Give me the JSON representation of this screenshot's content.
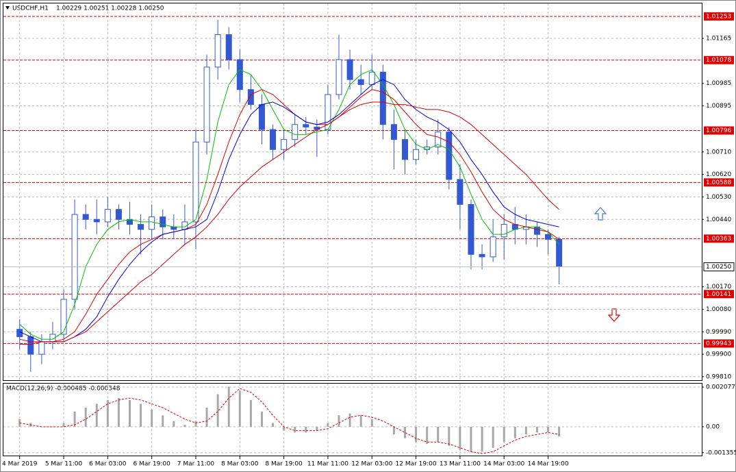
{
  "chart_data": [
    {
      "type": "candlestick",
      "title": "USDCHF,H1",
      "subtitle": "1.00229 1.00251 1.00228 1.00250",
      "categories": [
        "4 Mar 2019",
        null,
        null,
        null,
        "5 Mar 11:00",
        null,
        null,
        null,
        "6 Mar 03:00",
        null,
        null,
        null,
        "6 Mar 19:00",
        null,
        null,
        null,
        "7 Mar 11:00",
        null,
        null,
        null,
        "8 Mar 03:00",
        null,
        null,
        null,
        "8 Mar 19:00",
        null,
        null,
        null,
        "11 Mar 11:00",
        null,
        null,
        null,
        "12 Mar 03:00",
        null,
        null,
        null,
        "12 Mar 19:00",
        null,
        null,
        null,
        "13 Mar 11:00",
        null,
        null,
        null,
        "14 Mar 03:00",
        null,
        null,
        null,
        "14 Mar 19:00",
        null
      ],
      "open": [
        1.0,
        0.9997,
        0.999,
        0.9995,
        0.9998,
        1.0012,
        1.0046,
        1.0044,
        1.0043,
        1.0048,
        1.0044,
        1.0042,
        1.004,
        1.0045,
        1.0041,
        1.004,
        1.0043,
        1.0075,
        1.0105,
        1.0118,
        1.0108,
        1.0096,
        1.009,
        1.008,
        1.0072,
        1.0076,
        1.0082,
        1.0081,
        1.008,
        1.0094,
        1.0108,
        1.01,
        1.0098,
        1.0103,
        1.0082,
        1.0076,
        1.0068,
        1.0072,
        1.0073,
        1.0079,
        1.006,
        1.005,
        1.003,
        1.0029,
        1.0037,
        1.0042,
        1.004,
        1.0041,
        1.0038,
        1.0036
      ],
      "high": [
        1.0004,
        0.9999,
        0.9998,
        1.0003,
        1.0016,
        1.0052,
        1.005,
        1.0052,
        1.0053,
        1.005,
        1.0051,
        1.0046,
        1.005,
        1.0048,
        1.0046,
        1.005,
        1.008,
        1.011,
        1.0124,
        1.0121,
        1.0112,
        1.0102,
        1.0094,
        1.0082,
        1.008,
        1.0086,
        1.0085,
        1.0084,
        1.0098,
        1.0118,
        1.0112,
        1.0106,
        1.011,
        1.0106,
        1.0088,
        1.008,
        1.0076,
        1.0076,
        1.0084,
        1.0081,
        1.0066,
        1.0052,
        1.0034,
        1.0044,
        1.0046,
        1.0049,
        1.0046,
        1.0043,
        1.004,
        1.0037
      ],
      "low": [
        0.9992,
        0.9983,
        0.9986,
        0.9992,
        0.9995,
        1.0008,
        1.004,
        1.0038,
        1.0041,
        1.004,
        1.0038,
        1.003,
        1.0036,
        1.0036,
        1.0036,
        1.0034,
        1.0032,
        1.007,
        1.01,
        1.0104,
        1.0091,
        1.0088,
        1.0074,
        1.0068,
        1.0068,
        1.0073,
        1.0078,
        1.0069,
        1.0078,
        1.0092,
        1.0096,
        1.0094,
        1.0096,
        1.0076,
        1.0064,
        1.0062,
        1.0066,
        1.007,
        1.007,
        1.0056,
        1.004,
        1.0024,
        1.0024,
        1.0027,
        1.0028,
        1.0034,
        1.0034,
        1.0033,
        1.003,
        1.0018
      ],
      "close": [
        0.9997,
        0.999,
        0.9995,
        0.9998,
        1.0012,
        1.0046,
        1.0044,
        1.0043,
        1.0048,
        1.0044,
        1.0042,
        1.004,
        1.0045,
        1.0041,
        1.004,
        1.0043,
        1.0075,
        1.0105,
        1.0118,
        1.0108,
        1.0096,
        1.009,
        1.008,
        1.0072,
        1.0076,
        1.0082,
        1.0081,
        1.008,
        1.0094,
        1.0108,
        1.01,
        1.0098,
        1.0103,
        1.0082,
        1.0076,
        1.0068,
        1.0072,
        1.0073,
        1.0079,
        1.006,
        1.005,
        1.003,
        1.0029,
        1.0037,
        1.0042,
        1.004,
        1.0041,
        1.0038,
        1.0036,
        1.0025
      ],
      "up_color": "#ffffff",
      "down_color": "#3358d4",
      "wick_color": "#3358d4",
      "lines": [
        {
          "color": "#00c000",
          "values": [
            1.0002,
            0.9998,
            0.9996,
            0.9996,
            0.9999,
            1.001,
            1.0025,
            1.0034,
            1.004,
            1.0043,
            1.0044,
            1.0043,
            1.0043,
            1.0042,
            1.0041,
            1.0041,
            1.0044,
            1.006,
            1.0083,
            1.0098,
            1.0104,
            1.0102,
            1.0096,
            1.0088,
            1.008,
            1.0078,
            1.0078,
            1.0079,
            1.008,
            1.0088,
            1.0098,
            1.0102,
            1.0104,
            1.0098,
            1.009,
            1.008,
            1.0074,
            1.0072,
            1.0074,
            1.0072,
            1.0065,
            1.0054,
            1.0044,
            1.0038,
            1.0038,
            1.004,
            1.0041,
            1.0041,
            1.0039,
            1.0034
          ]
        },
        {
          "color": "#e00000",
          "values": [
            0.9994,
            0.9994,
            0.9995,
            0.9995,
            0.9996,
            0.9999,
            1.0006,
            1.0014,
            1.002,
            1.0026,
            1.0031,
            1.0034,
            1.0036,
            1.0038,
            1.0039,
            1.004,
            1.0042,
            1.005,
            1.0062,
            1.0075,
            1.0086,
            1.0094,
            1.0096,
            1.0094,
            1.009,
            1.0086,
            1.0083,
            1.0082,
            1.0082,
            1.0085,
            1.0089,
            1.0093,
            1.0096,
            1.0095,
            1.0092,
            1.0087,
            1.0082,
            1.0078,
            1.0077,
            1.0075,
            1.007,
            1.0063,
            1.0055,
            1.0048,
            1.0044,
            1.0042,
            1.0041,
            1.004,
            1.0039,
            1.0036
          ]
        },
        {
          "color": "#0000e0",
          "values": [
            0.9999,
            0.9997,
            0.9995,
            0.9995,
            0.9995,
            0.9997,
            1.0,
            1.0005,
            1.0013,
            1.002,
            1.0026,
            1.0031,
            1.0035,
            1.0038,
            1.0039,
            1.004,
            1.0041,
            1.0044,
            1.0055,
            1.0068,
            1.0078,
            1.0086,
            1.009,
            1.0091,
            1.0089,
            1.0086,
            1.0083,
            1.0082,
            1.0083,
            1.0086,
            1.009,
            1.0094,
            1.0098,
            1.01,
            1.0098,
            1.0092,
            1.0088,
            1.0085,
            1.0083,
            1.008,
            1.0075,
            1.0068,
            1.0062,
            1.0055,
            1.0049,
            1.0046,
            1.0044,
            1.0043,
            1.0042,
            1.0041
          ]
        },
        {
          "color": "#d00000",
          "values": [
            0.9996,
            0.9995,
            0.9995,
            0.9995,
            0.9995,
            0.9997,
            0.9999,
            1.0003,
            1.0007,
            1.0011,
            1.0015,
            1.0019,
            1.0022,
            1.0026,
            1.003,
            1.0034,
            1.0037,
            1.0041,
            1.0046,
            1.0052,
            1.0057,
            1.0061,
            1.0065,
            1.0068,
            1.0071,
            1.0074,
            1.0077,
            1.008,
            1.0082,
            1.0085,
            1.0088,
            1.009,
            1.0091,
            1.0091,
            1.009,
            1.009,
            1.0089,
            1.0088,
            1.0088,
            1.0087,
            1.0085,
            1.0082,
            1.0078,
            1.0074,
            1.007,
            1.0066,
            1.0062,
            1.0057,
            1.0052,
            1.0048
          ]
        }
      ],
      "levels": [
        1.01253,
        1.01078,
        1.00796,
        1.00588,
        1.00363,
        1.00141,
        0.99943
      ],
      "level_color": "#e00000",
      "last_price": {
        "value": 1.0025,
        "label": "1.00250"
      },
      "ylim": [
        0.99796,
        1.01305
      ],
      "yticks": [
        1.01165,
        1.00985,
        1.00895,
        {
          "value": 1.0071,
          "label": "1.00710"
        },
        {
          "value": 1.0062,
          "label": "1.00620"
        },
        {
          "value": 1.0053,
          "label": "1.00530"
        },
        {
          "value": 1.0044,
          "label": "1.00440"
        },
        {
          "value": 1.0017,
          "label": "1.00170"
        },
        {
          "value": 1.0008,
          "label": "1.00080"
        },
        {
          "value": 0.9999,
          "label": "0.99990"
        },
        {
          "value": 0.999,
          "label": "0.99900"
        },
        {
          "value": 0.9981,
          "label": "0.99810"
        }
      ],
      "grid": true
    },
    {
      "type": "bar",
      "title": "MACD(12,26,9) -0.000485 -0.000348",
      "values": [
        0.0004,
        0.0002,
        0,
        0,
        0.0002,
        0.0008,
        0.001,
        0.0012,
        0.0014,
        0.0015,
        0.0014,
        0.0012,
        0.0009,
        0.0006,
        0.0003,
        0.0001,
        0.0003,
        0.001,
        0.0017,
        0.0021,
        0.0019,
        0.0014,
        0.0008,
        0.0002,
        -0.0002,
        -0.0003,
        -0.0003,
        -0.0002,
        0.0002,
        0.0006,
        0.0007,
        0.0006,
        0.0004,
        0,
        -0.0004,
        -0.0006,
        -0.0008,
        -0.0009,
        -0.0008,
        -0.001,
        -0.0012,
        -0.0013,
        -0.0013,
        -0.0011,
        -0.0008,
        -0.0006,
        -0.0004,
        -0.0003,
        -0.0003,
        -0.0005
      ],
      "color": "#a8a8a8",
      "signal": {
        "color": "#e00000",
        "values": [
          0.0002,
          0.0001,
          0,
          0,
          0,
          0.0001,
          0.0004,
          0.0008,
          0.0012,
          0.0014,
          0.0015,
          0.0014,
          0.0012,
          0.001,
          0.0007,
          0.0004,
          0.0002,
          0.0003,
          0.0008,
          0.0015,
          0.002,
          0.0018,
          0.0013,
          0.0006,
          0,
          -0.0002,
          -0.0002,
          -0.0002,
          -0.0001,
          0.0002,
          0.0005,
          0.0006,
          0.0005,
          0.0003,
          0,
          -0.0003,
          -0.0006,
          -0.0008,
          -0.0008,
          -0.0009,
          -0.0011,
          -0.0013,
          -0.0014,
          -0.0013,
          -0.001,
          -0.0007,
          -0.0005,
          -0.0004,
          -0.0003,
          -0.0004
        ]
      },
      "ylim": [
        -0.001504,
        0.002256
      ],
      "yticks": [
        0.002077,
        {
          "value": 0,
          "label": "0.00"
        },
        -0.001355
      ],
      "grid": true
    }
  ]
}
